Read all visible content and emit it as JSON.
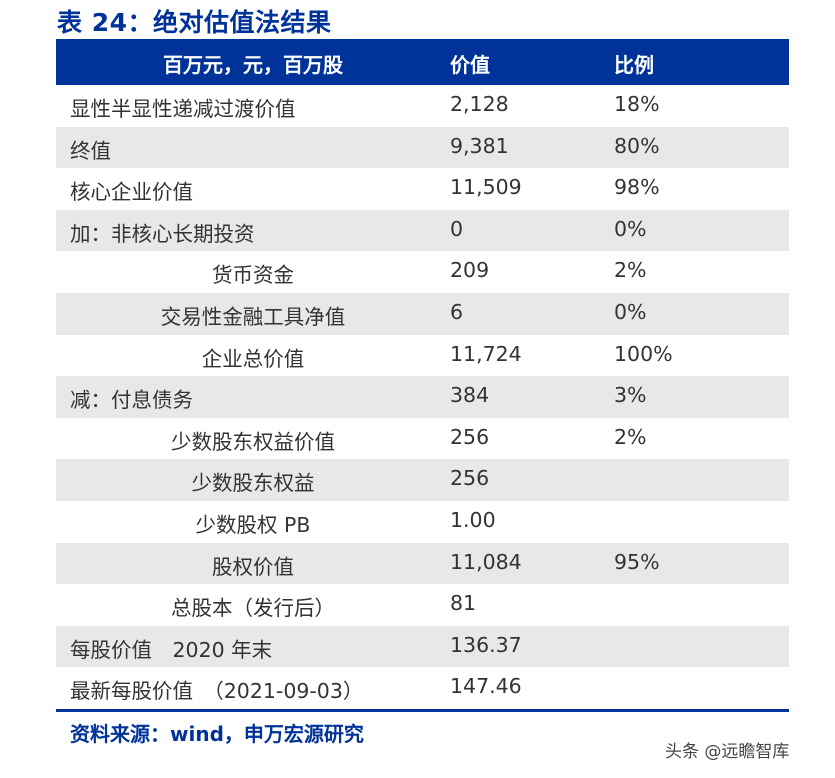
{
  "title": "表 24：绝对估值法结果",
  "table": {
    "headers": [
      "百万元，元，百万股",
      "价值",
      "比例"
    ],
    "rows": [
      {
        "label": "显性半显性递减过渡价值",
        "value": "2,128",
        "ratio": "18%",
        "align": "left"
      },
      {
        "label": "终值",
        "value": "9,381",
        "ratio": "80%",
        "align": "left"
      },
      {
        "label": "核心企业价值",
        "value": "11,509",
        "ratio": "98%",
        "align": "left"
      },
      {
        "label": "加：非核心长期投资",
        "value": "0",
        "ratio": "0%",
        "align": "left"
      },
      {
        "label": "货币资金",
        "value": "209",
        "ratio": "2%",
        "align": "center"
      },
      {
        "label": "交易性金融工具净值",
        "value": "6",
        "ratio": "0%",
        "align": "center"
      },
      {
        "label": "企业总价值",
        "value": "11,724",
        "ratio": "100%",
        "align": "center"
      },
      {
        "label": "减：付息债务",
        "value": "384",
        "ratio": "3%",
        "align": "left"
      },
      {
        "label": "少数股东权益价值",
        "value": "256",
        "ratio": "2%",
        "align": "center"
      },
      {
        "label": "少数股东权益",
        "value": "256",
        "ratio": "",
        "align": "center"
      },
      {
        "label": "少数股权 PB",
        "value": "1.00",
        "ratio": "",
        "align": "center"
      },
      {
        "label": "股权价值",
        "value": "11,084",
        "ratio": "95%",
        "align": "center"
      },
      {
        "label": "总股本（发行后）",
        "value": "81",
        "ratio": "",
        "align": "center"
      },
      {
        "label": "每股价值　2020 年末",
        "value": "136.37",
        "ratio": "",
        "align": "left"
      },
      {
        "label": "最新每股价值　（2021-09-03）",
        "value": "147.46",
        "ratio": "",
        "align": "left"
      }
    ]
  },
  "source": "资料来源：wind，申万宏源研究",
  "watermark": "头条 @远瞻智库",
  "colors": {
    "accent": "#003399",
    "alt_row": "#e8e8e8",
    "text": "#333333"
  }
}
